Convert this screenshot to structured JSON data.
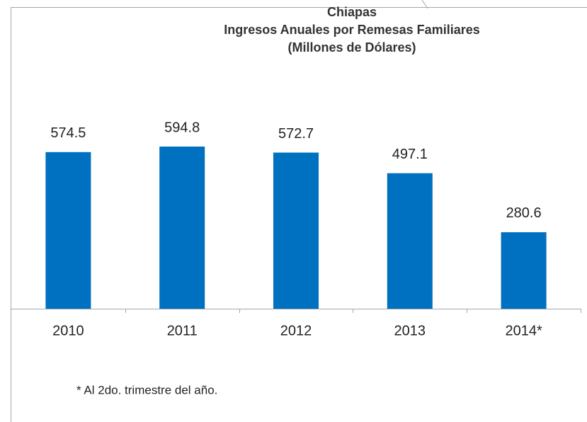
{
  "chart_data": {
    "type": "bar",
    "title": [
      "Chiapas",
      "Ingresos Anuales por Remesas Familiares",
      "(Millones de Dólares)"
    ],
    "categories": [
      "2010",
      "2011",
      "2012",
      "2013",
      "2014*"
    ],
    "values": [
      574.5,
      594.8,
      572.7,
      497.1,
      280.6
    ],
    "color": "#0070c0",
    "annotations": [
      "* Al 2do. trimestre del año."
    ]
  }
}
